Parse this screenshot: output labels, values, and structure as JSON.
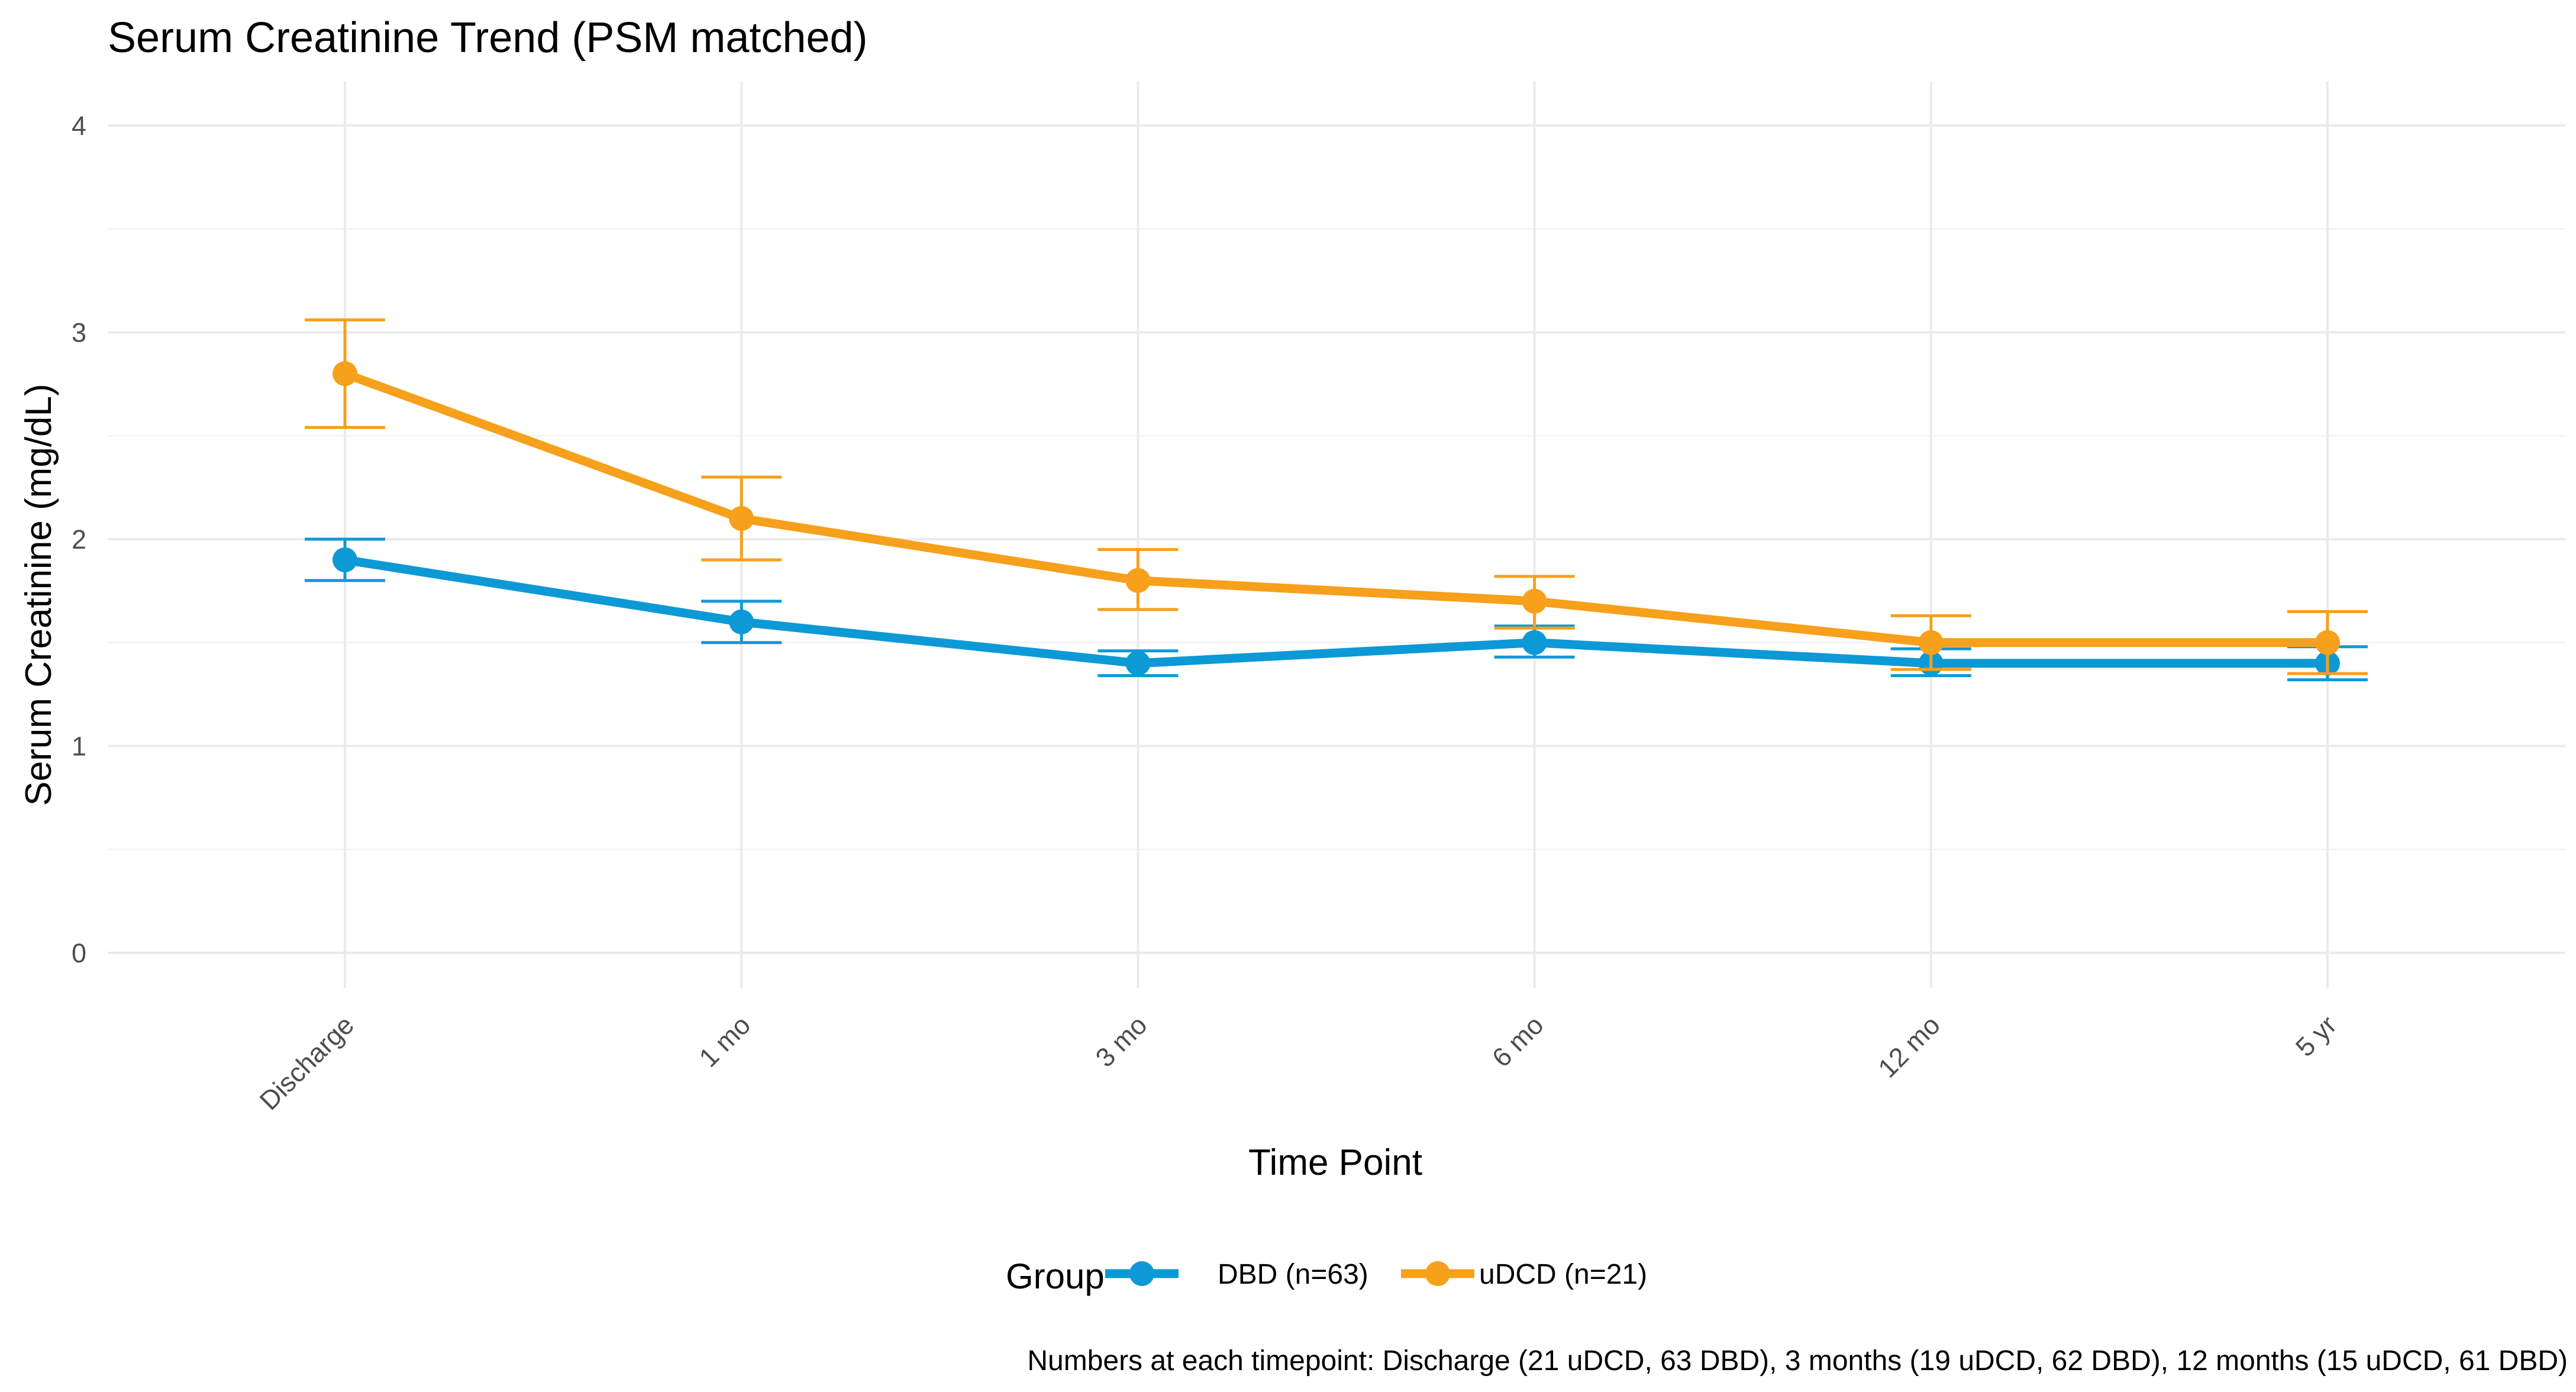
{
  "chart_data": {
    "type": "line",
    "title": "Serum Creatinine Trend (PSM matched)",
    "xlabel": "Time Point",
    "ylabel": "Serum Creatinine (mg/dL)",
    "categories": [
      "Discharge",
      "1 mo",
      "3 mo",
      "6 mo",
      "12 mo",
      "5 yr"
    ],
    "ylim": [
      0,
      4
    ],
    "yticks": [
      0,
      1,
      2,
      3,
      4
    ],
    "grid": true,
    "legend": {
      "title": "Group",
      "placement": "bottom"
    },
    "series": [
      {
        "name": "DBD (n=63)",
        "color": "#0c99d6",
        "values": [
          1.9,
          1.6,
          1.4,
          1.5,
          1.4,
          1.4
        ],
        "error_low": [
          1.8,
          1.5,
          1.34,
          1.43,
          1.34,
          1.32
        ],
        "error_high": [
          2.0,
          1.7,
          1.46,
          1.58,
          1.47,
          1.48
        ]
      },
      {
        "name": "uDCD (n=21)",
        "color": "#f7a01b",
        "values": [
          2.8,
          2.1,
          1.8,
          1.7,
          1.5,
          1.5
        ],
        "error_low": [
          2.54,
          1.9,
          1.66,
          1.57,
          1.37,
          1.35
        ],
        "error_high": [
          3.06,
          2.3,
          1.95,
          1.82,
          1.63,
          1.65
        ]
      }
    ],
    "caption": "Numbers at each timepoint: Discharge (21 uDCD, 63 DBD), 3 months (19 uDCD, 62 DBD), 12 months (15 uDCD, 61 DBD)"
  }
}
